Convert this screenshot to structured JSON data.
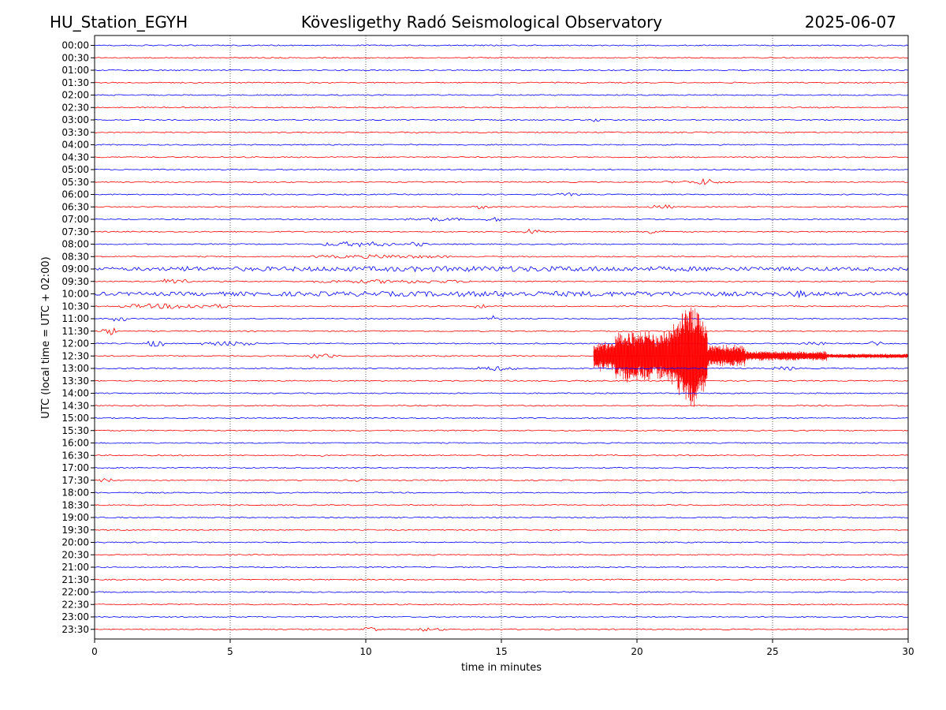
{
  "header": {
    "station": "HU_Station_EGYH",
    "observatory": "Kövesligethy Radó Seismological Observatory",
    "date": "2025-06-07"
  },
  "chart_data": {
    "type": "line",
    "title": "Kövesligethy Radó Seismological Observatory",
    "xlabel": "time in minutes",
    "ylabel": "UTC (local time = UTC + 02:00)",
    "xlim": [
      0,
      30
    ],
    "xticks": [
      0,
      5,
      10,
      15,
      20,
      25,
      30
    ],
    "grid": "vertical dotted lines at x ticks",
    "colors": {
      "even_trace": "#0000ff",
      "odd_trace": "#ff0000"
    },
    "traces": [
      {
        "label": "00:00",
        "color": "#0000ff",
        "bursts": []
      },
      {
        "label": "00:30",
        "color": "#ff0000",
        "bursts": []
      },
      {
        "label": "01:00",
        "color": "#0000ff",
        "bursts": []
      },
      {
        "label": "01:30",
        "color": "#ff0000",
        "bursts": []
      },
      {
        "label": "02:00",
        "color": "#0000ff",
        "bursts": []
      },
      {
        "label": "02:30",
        "color": "#ff0000",
        "bursts": []
      },
      {
        "label": "03:00",
        "color": "#0000ff",
        "bursts": [
          [
            18.4,
            0.3,
            3
          ]
        ]
      },
      {
        "label": "03:30",
        "color": "#ff0000",
        "bursts": [
          [
            11.7,
            0.2,
            2
          ]
        ]
      },
      {
        "label": "04:00",
        "color": "#0000ff",
        "bursts": []
      },
      {
        "label": "04:30",
        "color": "#ff0000",
        "bursts": []
      },
      {
        "label": "05:00",
        "color": "#0000ff",
        "bursts": []
      },
      {
        "label": "05:30",
        "color": "#ff0000",
        "bursts": [
          [
            22.3,
            0.5,
            5
          ],
          [
            21.0,
            2.5,
            2
          ]
        ]
      },
      {
        "label": "06:00",
        "color": "#0000ff",
        "bursts": [
          [
            17.0,
            1.0,
            2
          ]
        ]
      },
      {
        "label": "06:30",
        "color": "#ff0000",
        "bursts": [
          [
            14.0,
            0.5,
            3
          ],
          [
            20.5,
            0.8,
            3
          ]
        ]
      },
      {
        "label": "07:00",
        "color": "#0000ff",
        "bursts": [
          [
            11.5,
            2.0,
            2.5
          ],
          [
            14.5,
            0.6,
            3
          ]
        ]
      },
      {
        "label": "07:30",
        "color": "#ff0000",
        "bursts": [
          [
            15.8,
            0.6,
            4
          ],
          [
            20.2,
            0.8,
            3
          ]
        ]
      },
      {
        "label": "08:00",
        "color": "#0000ff",
        "bursts": [
          [
            8.5,
            2.5,
            3.5
          ],
          [
            11.5,
            0.8,
            3
          ]
        ]
      },
      {
        "label": "08:30",
        "color": "#ff0000",
        "bursts": [
          [
            8.0,
            5.0,
            2.5
          ]
        ]
      },
      {
        "label": "09:00",
        "color": "#0000ff",
        "bursts": [
          [
            0.0,
            30.0,
            3.5
          ],
          [
            3.2,
            0.6,
            4.5
          ]
        ]
      },
      {
        "label": "09:30",
        "color": "#ff0000",
        "bursts": [
          [
            2.5,
            1.0,
            4.5
          ],
          [
            8.0,
            6.0,
            2.5
          ]
        ]
      },
      {
        "label": "10:00",
        "color": "#0000ff",
        "bursts": [
          [
            0.0,
            30.0,
            3.5
          ],
          [
            25.8,
            0.5,
            5
          ]
        ]
      },
      {
        "label": "10:30",
        "color": "#ff0000",
        "bursts": [
          [
            1.0,
            4.0,
            3.5
          ],
          [
            14.0,
            0.4,
            4
          ]
        ]
      },
      {
        "label": "11:00",
        "color": "#0000ff",
        "bursts": [
          [
            0.7,
            0.4,
            4.5
          ],
          [
            14.5,
            0.4,
            4
          ]
        ]
      },
      {
        "label": "11:30",
        "color": "#ff0000",
        "bursts": [
          [
            0.3,
            0.5,
            5
          ]
        ]
      },
      {
        "label": "12:00",
        "color": "#0000ff",
        "bursts": [
          [
            2.0,
            0.5,
            4.5
          ],
          [
            4.0,
            2.0,
            3
          ],
          [
            26.0,
            1.0,
            3
          ],
          [
            28.5,
            0.5,
            3.5
          ]
        ]
      },
      {
        "label": "12:30",
        "color": "#ff0000",
        "bursts": [
          [
            8.0,
            0.8,
            4.5
          ]
        ],
        "event": {
          "onset": 18.4,
          "peak_minute": 22.0,
          "end": 30.0
        }
      },
      {
        "label": "13:00",
        "color": "#0000ff",
        "bursts": [
          [
            14.0,
            1.5,
            3
          ],
          [
            25.0,
            1.0,
            2.5
          ]
        ]
      },
      {
        "label": "13:30",
        "color": "#ff0000",
        "bursts": []
      },
      {
        "label": "14:00",
        "color": "#0000ff",
        "bursts": []
      },
      {
        "label": "14:30",
        "color": "#ff0000",
        "bursts": []
      },
      {
        "label": "15:00",
        "color": "#0000ff",
        "bursts": []
      },
      {
        "label": "15:30",
        "color": "#ff0000",
        "bursts": []
      },
      {
        "label": "16:00",
        "color": "#0000ff",
        "bursts": []
      },
      {
        "label": "16:30",
        "color": "#ff0000",
        "bursts": [
          [
            8.3,
            0.2,
            2.5
          ]
        ]
      },
      {
        "label": "17:00",
        "color": "#0000ff",
        "bursts": []
      },
      {
        "label": "17:30",
        "color": "#ff0000",
        "bursts": [
          [
            0.2,
            0.4,
            3
          ],
          [
            9.5,
            0.3,
            2
          ]
        ]
      },
      {
        "label": "18:00",
        "color": "#0000ff",
        "bursts": []
      },
      {
        "label": "18:30",
        "color": "#ff0000",
        "bursts": []
      },
      {
        "label": "19:00",
        "color": "#0000ff",
        "bursts": []
      },
      {
        "label": "19:30",
        "color": "#ff0000",
        "bursts": []
      },
      {
        "label": "20:00",
        "color": "#0000ff",
        "bursts": []
      },
      {
        "label": "20:30",
        "color": "#ff0000",
        "bursts": []
      },
      {
        "label": "21:00",
        "color": "#0000ff",
        "bursts": []
      },
      {
        "label": "21:30",
        "color": "#ff0000",
        "bursts": []
      },
      {
        "label": "22:00",
        "color": "#0000ff",
        "bursts": []
      },
      {
        "label": "22:30",
        "color": "#ff0000",
        "bursts": []
      },
      {
        "label": "23:00",
        "color": "#0000ff",
        "bursts": []
      },
      {
        "label": "23:30",
        "color": "#ff0000",
        "bursts": [
          [
            10.0,
            0.4,
            4.5
          ],
          [
            11.9,
            0.4,
            3
          ],
          [
            12.5,
            0.4,
            2
          ]
        ]
      }
    ]
  }
}
